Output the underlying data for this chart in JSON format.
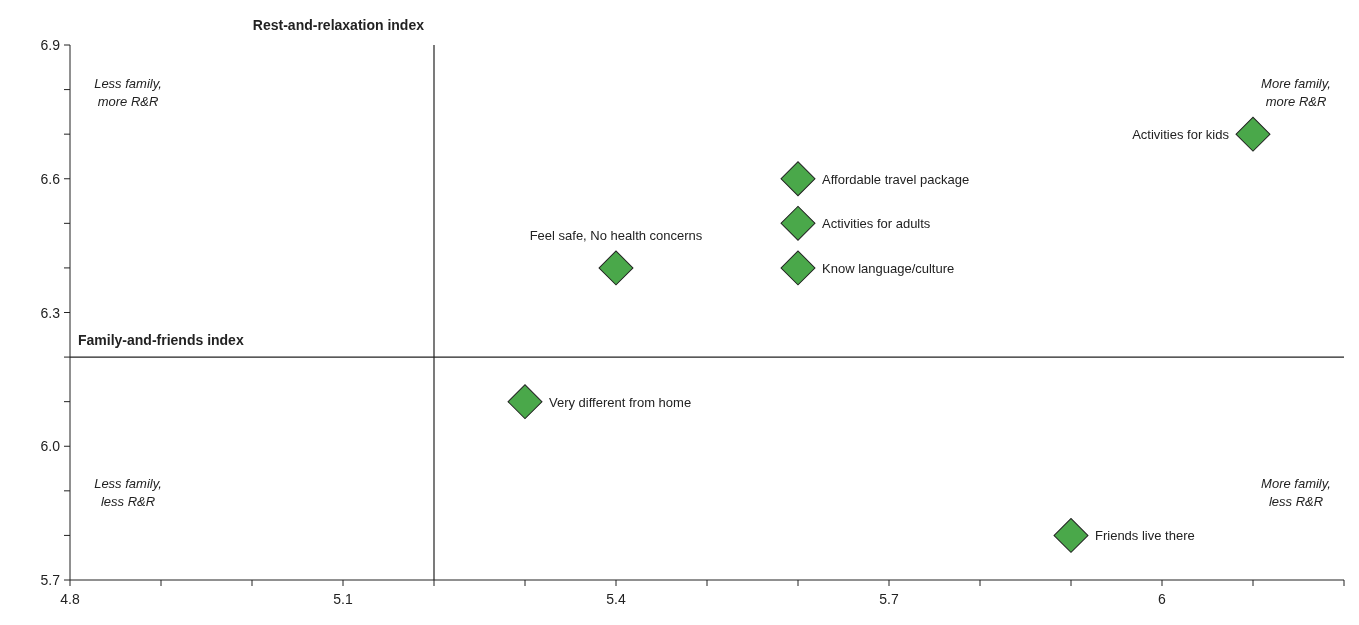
{
  "chart_data": {
    "type": "scatter",
    "xlabel": "Family-and-friends index",
    "ylabel": "Rest-and-relaxation index",
    "xlim": [
      4.8,
      6.2
    ],
    "ylim": [
      5.7,
      6.9
    ],
    "xticks": [
      4.8,
      {
        "value": 4.9,
        "label": null
      },
      {
        "value": 5.0,
        "label": null
      },
      5.1,
      {
        "value": 5.2,
        "label": null
      },
      {
        "value": 5.3,
        "label": null
      },
      5.4,
      {
        "value": 5.5,
        "label": null
      },
      {
        "value": 5.6,
        "label": null
      },
      5.7,
      {
        "value": 5.8,
        "label": null
      },
      {
        "value": 5.9,
        "label": null
      },
      6,
      {
        "value": 6.1,
        "label": null
      },
      {
        "value": 6.2,
        "label": null
      }
    ],
    "yticks": [
      5.7,
      {
        "value": 5.8,
        "label": null
      },
      {
        "value": 5.9,
        "label": null
      },
      {
        "value": 6.0,
        "label": "6.0"
      },
      {
        "value": 6.1,
        "label": null
      },
      {
        "value": 6.2,
        "label": null
      },
      6.3,
      {
        "value": 6.4,
        "label": null
      },
      {
        "value": 6.5,
        "label": null
      },
      6.6,
      {
        "value": 6.7,
        "label": null
      },
      {
        "value": 6.8,
        "label": null
      },
      6.9
    ],
    "ref_lines": [
      {
        "axis": "x",
        "value": 5.2
      },
      {
        "axis": "y",
        "value": 6.2
      }
    ],
    "series": [
      {
        "color": "#4aa84a",
        "x": [
          6.1,
          5.6,
          5.6,
          5.6,
          5.4,
          5.3,
          5.9
        ],
        "values": [
          6.7,
          6.6,
          6.5,
          6.4,
          6.4,
          6.1,
          5.8
        ]
      }
    ],
    "marker": "diamond",
    "grid": false,
    "annotations": [
      {
        "text": "Activities for kids",
        "x": 6.1,
        "y": 6.7
      },
      {
        "text": "Affordable travel package",
        "x": 5.6,
        "y": 6.6
      },
      {
        "text": "Activities for adults",
        "x": 5.6,
        "y": 6.5
      },
      {
        "text": "Know language/culture",
        "x": 5.6,
        "y": 6.4
      },
      {
        "text": "Feel safe, No health concerns",
        "x": 5.4,
        "y": 6.4
      },
      {
        "text": "Very different from home",
        "x": 5.3,
        "y": 6.1
      },
      {
        "text": "Friends live there",
        "x": 5.9,
        "y": 5.8
      },
      "Less family, more R&R",
      "More family, more R&R",
      "Less family, less R&R",
      "More family, less R&R"
    ]
  }
}
